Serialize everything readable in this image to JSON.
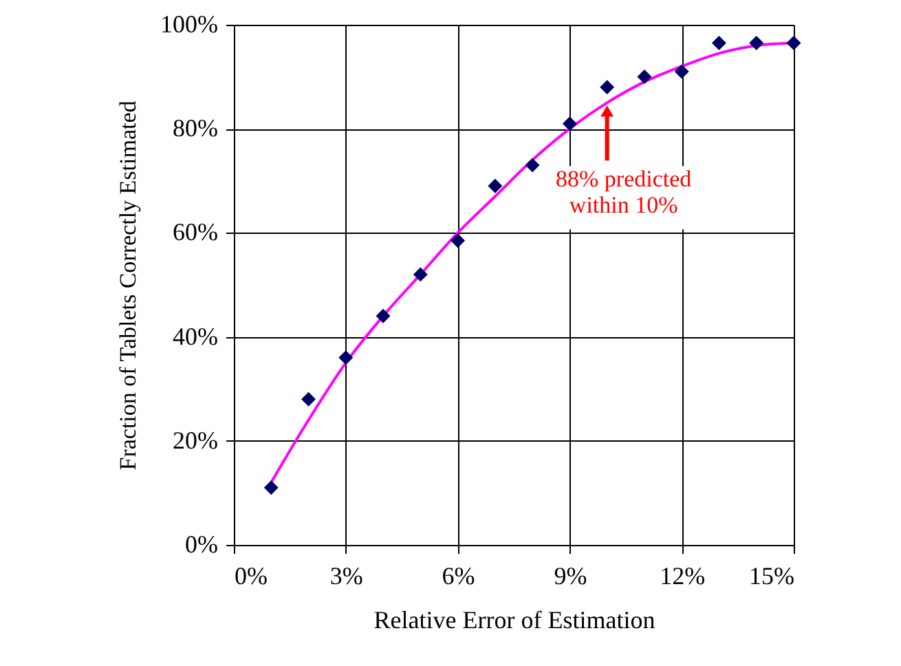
{
  "chart_data": {
    "type": "scatter",
    "xlabel": "Relative Error of Estimation",
    "ylabel": "Fraction of Tablets Correctly Estimated",
    "x": [
      1,
      2,
      3,
      4,
      5,
      6,
      7,
      8,
      9,
      10,
      11,
      12,
      13,
      14,
      15
    ],
    "series": [
      {
        "color": "#000066",
        "marker": "diamond",
        "values": [
          11,
          28,
          36,
          44,
          52,
          58.5,
          69,
          73,
          81,
          88,
          90,
          91,
          96.5,
          96.5,
          96.5
        ]
      },
      {
        "type": "line",
        "color": "#ff00ff",
        "marker": "none",
        "line_style": "solid",
        "x": [
          1,
          2,
          3,
          4,
          5,
          6,
          7,
          8,
          9,
          10,
          11,
          12,
          13,
          14,
          15
        ],
        "values": [
          12,
          24,
          35,
          44,
          52,
          60,
          67,
          74,
          80,
          85,
          89,
          92,
          94.5,
          96,
          96.5
        ]
      }
    ],
    "xlim": [
      0,
      15
    ],
    "ylim": [
      0,
      100
    ],
    "xticks": [
      {
        "value": 0,
        "label": "0%"
      },
      {
        "value": 3,
        "label": "3%"
      },
      {
        "value": 6,
        "label": "6%"
      },
      {
        "value": 9,
        "label": "9%"
      },
      {
        "value": 12,
        "label": "12%"
      },
      {
        "value": 15,
        "label": "15%"
      }
    ],
    "yticks": [
      {
        "value": 0,
        "label": "0%"
      },
      {
        "value": 20,
        "label": "20%"
      },
      {
        "value": 40,
        "label": "40%"
      },
      {
        "value": 60,
        "label": "60%"
      },
      {
        "value": 80,
        "label": "80%"
      },
      {
        "value": 100,
        "label": "100%"
      }
    ],
    "grid": true,
    "annotations": [
      {
        "text": "88% predicted\nwithin 10%",
        "x": 10,
        "y": 85
      }
    ]
  }
}
